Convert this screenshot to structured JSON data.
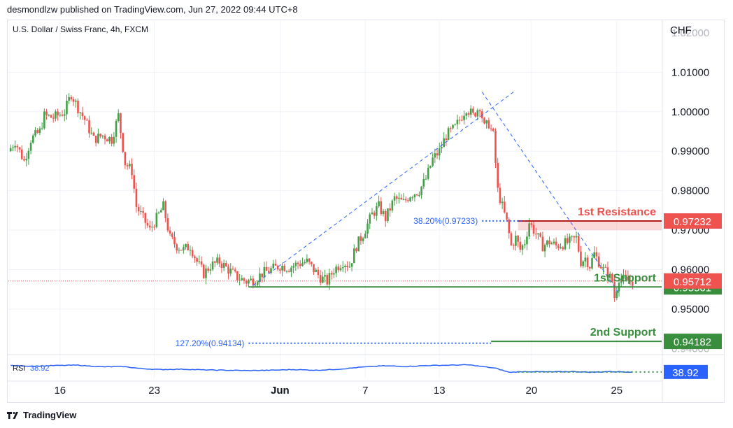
{
  "header": {
    "publisher": "desmondlzw published on TradingView.com, Jun 27, 2022 09:44 UTC+8"
  },
  "footer": {
    "brand": "TradingView"
  },
  "chart_data": {
    "type": "candlestick",
    "title": "U.S. Dollar / Swiss Franc, 4h, FXCM",
    "currency": "CHF",
    "y_axis_ticks": [
      "1.01000",
      "1.00000",
      "0.99000",
      "0.98000",
      "0.97000",
      "0.96000",
      "0.95000"
    ],
    "ylim": [
      0.939,
      1.023
    ],
    "x_axis_ticks": [
      {
        "label": "16",
        "t": 22
      },
      {
        "label": "23",
        "t": 64
      },
      {
        "label": "Jun",
        "t": 120
      },
      {
        "label": "7",
        "t": 158
      },
      {
        "label": "13",
        "t": 191
      },
      {
        "label": "20",
        "t": 232
      },
      {
        "label": "25",
        "t": 270
      }
    ],
    "t_range": [
      -1,
      290
    ],
    "price_path": [
      {
        "t": 0,
        "v": 0.99
      },
      {
        "t": 3,
        "v": 0.9925
      },
      {
        "t": 7,
        "v": 0.9875
      },
      {
        "t": 10,
        "v": 0.993
      },
      {
        "t": 14,
        "v": 0.995
      },
      {
        "t": 16,
        "v": 0.999
      },
      {
        "t": 20,
        "v": 0.9985
      },
      {
        "t": 25,
        "v": 1.0
      },
      {
        "t": 28,
        "v": 1.0045
      },
      {
        "t": 31,
        "v": 1.001
      },
      {
        "t": 34,
        "v": 0.998
      },
      {
        "t": 38,
        "v": 0.993
      },
      {
        "t": 42,
        "v": 0.994
      },
      {
        "t": 46,
        "v": 0.993
      },
      {
        "t": 49,
        "v": 0.999
      },
      {
        "t": 52,
        "v": 0.987
      },
      {
        "t": 55,
        "v": 0.985
      },
      {
        "t": 57,
        "v": 0.976
      },
      {
        "t": 60,
        "v": 0.973
      },
      {
        "t": 63,
        "v": 0.97
      },
      {
        "t": 66,
        "v": 0.973
      },
      {
        "t": 69,
        "v": 0.976
      },
      {
        "t": 72,
        "v": 0.968
      },
      {
        "t": 75,
        "v": 0.966
      },
      {
        "t": 78,
        "v": 0.965
      },
      {
        "t": 81,
        "v": 0.966
      },
      {
        "t": 84,
        "v": 0.962
      },
      {
        "t": 87,
        "v": 0.959
      },
      {
        "t": 90,
        "v": 0.961
      },
      {
        "t": 94,
        "v": 0.962
      },
      {
        "t": 98,
        "v": 0.96
      },
      {
        "t": 102,
        "v": 0.958
      },
      {
        "t": 106,
        "v": 0.957
      },
      {
        "t": 110,
        "v": 0.9575
      },
      {
        "t": 113,
        "v": 0.959
      },
      {
        "t": 117,
        "v": 0.96
      },
      {
        "t": 121,
        "v": 0.961
      },
      {
        "t": 125,
        "v": 0.9605
      },
      {
        "t": 129,
        "v": 0.9615
      },
      {
        "t": 133,
        "v": 0.962
      },
      {
        "t": 136,
        "v": 0.96
      },
      {
        "t": 139,
        "v": 0.958
      },
      {
        "t": 142,
        "v": 0.957
      },
      {
        "t": 145,
        "v": 0.96
      },
      {
        "t": 149,
        "v": 0.962
      },
      {
        "t": 152,
        "v": 0.961
      },
      {
        "t": 155,
        "v": 0.966
      },
      {
        "t": 158,
        "v": 0.969
      },
      {
        "t": 162,
        "v": 0.974
      },
      {
        "t": 165,
        "v": 0.976
      },
      {
        "t": 168,
        "v": 0.973
      },
      {
        "t": 172,
        "v": 0.978
      },
      {
        "t": 176,
        "v": 0.977
      },
      {
        "t": 179,
        "v": 0.979
      },
      {
        "t": 183,
        "v": 0.98
      },
      {
        "t": 186,
        "v": 0.983
      },
      {
        "t": 189,
        "v": 0.988
      },
      {
        "t": 192,
        "v": 0.99
      },
      {
        "t": 195,
        "v": 0.994
      },
      {
        "t": 199,
        "v": 0.996
      },
      {
        "t": 202,
        "v": 0.999
      },
      {
        "t": 204,
        "v": 1.001
      },
      {
        "t": 207,
        "v": 0.999
      },
      {
        "t": 210,
        "v": 1.0015
      },
      {
        "t": 212,
        "v": 0.996
      },
      {
        "t": 214,
        "v": 0.997
      },
      {
        "t": 216,
        "v": 0.994
      },
      {
        "t": 218,
        "v": 0.98
      },
      {
        "t": 220,
        "v": 0.976
      },
      {
        "t": 222,
        "v": 0.972
      },
      {
        "t": 224,
        "v": 0.966
      },
      {
        "t": 226,
        "v": 0.968
      },
      {
        "t": 228,
        "v": 0.965
      },
      {
        "t": 230,
        "v": 0.967
      },
      {
        "t": 232,
        "v": 0.972
      },
      {
        "t": 234,
        "v": 0.97
      },
      {
        "t": 236,
        "v": 0.968
      },
      {
        "t": 238,
        "v": 0.966
      },
      {
        "t": 241,
        "v": 0.967
      },
      {
        "t": 244,
        "v": 0.966
      },
      {
        "t": 247,
        "v": 0.9665
      },
      {
        "t": 250,
        "v": 0.967
      },
      {
        "t": 253,
        "v": 0.968
      },
      {
        "t": 255,
        "v": 0.962
      },
      {
        "t": 257,
        "v": 0.963
      },
      {
        "t": 259,
        "v": 0.961
      },
      {
        "t": 261,
        "v": 0.964
      },
      {
        "t": 263,
        "v": 0.962
      },
      {
        "t": 265,
        "v": 0.96
      },
      {
        "t": 267,
        "v": 0.959
      },
      {
        "t": 269,
        "v": 0.957
      },
      {
        "t": 270,
        "v": 0.953
      },
      {
        "t": 272,
        "v": 0.958
      },
      {
        "t": 274,
        "v": 0.9575
      },
      {
        "t": 277,
        "v": 0.9571
      }
    ],
    "trendlines": [
      {
        "style": "dashed",
        "color": "#2962ff",
        "from": {
          "t": 108,
          "v": 0.956
        },
        "to": {
          "t": 224,
          "v": 1.005
        }
      },
      {
        "style": "dashed",
        "color": "#2962ff",
        "from": {
          "t": 210,
          "v": 1.005
        },
        "to": {
          "t": 271,
          "v": 0.954
        }
      }
    ],
    "fib_levels": [
      {
        "label": "38.20%(0.97233)",
        "value": 0.97233,
        "t_start": 210,
        "t_end": 229
      },
      {
        "label": "127.20%(0.94134)",
        "value": 0.94134,
        "t_start": 106,
        "t_end": 214
      }
    ],
    "levels": [
      {
        "name": "1st Resistance",
        "value": 0.97232,
        "color": "#ef5350",
        "zone_top": 0.97232,
        "zone_bottom": 0.97,
        "t_start": 226,
        "t_end": 290,
        "price_label": "0.97232"
      },
      {
        "name": "1st Support",
        "value": 0.95561,
        "color": "#388e3c",
        "t_start": 106,
        "t_end": 290,
        "price_label": "0.95561"
      },
      {
        "name": "2nd Support",
        "value": 0.94182,
        "color": "#388e3c",
        "t_start": 214,
        "t_end": 290,
        "price_label": "0.94182"
      }
    ],
    "current_price": {
      "value": 0.95712,
      "label": "0.95712",
      "color": "#ef5350"
    },
    "partial_tick_labels": [
      "1.02000",
      "0.94000"
    ],
    "rsi": {
      "label": "RSI",
      "value": "38.92",
      "color": "#2962ff",
      "path": [
        {
          "t": 0,
          "v": 58
        },
        {
          "t": 10,
          "v": 56
        },
        {
          "t": 20,
          "v": 58
        },
        {
          "t": 30,
          "v": 59
        },
        {
          "t": 40,
          "v": 54
        },
        {
          "t": 50,
          "v": 55
        },
        {
          "t": 58,
          "v": 49
        },
        {
          "t": 66,
          "v": 46
        },
        {
          "t": 76,
          "v": 47
        },
        {
          "t": 86,
          "v": 45
        },
        {
          "t": 96,
          "v": 44
        },
        {
          "t": 106,
          "v": 43
        },
        {
          "t": 116,
          "v": 44
        },
        {
          "t": 126,
          "v": 46
        },
        {
          "t": 136,
          "v": 44
        },
        {
          "t": 146,
          "v": 47
        },
        {
          "t": 156,
          "v": 53
        },
        {
          "t": 166,
          "v": 57
        },
        {
          "t": 176,
          "v": 55
        },
        {
          "t": 186,
          "v": 58
        },
        {
          "t": 196,
          "v": 59
        },
        {
          "t": 204,
          "v": 60
        },
        {
          "t": 210,
          "v": 55
        },
        {
          "t": 216,
          "v": 50
        },
        {
          "t": 222,
          "v": 38
        },
        {
          "t": 230,
          "v": 40
        },
        {
          "t": 240,
          "v": 39
        },
        {
          "t": 250,
          "v": 40
        },
        {
          "t": 260,
          "v": 38
        },
        {
          "t": 266,
          "v": 40
        },
        {
          "t": 277,
          "v": 38.92
        }
      ],
      "range": [
        20,
        80
      ]
    }
  }
}
